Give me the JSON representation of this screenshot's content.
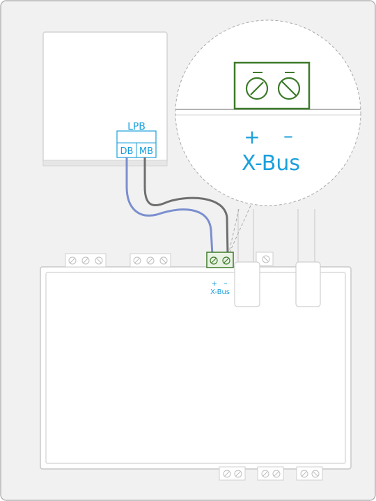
{
  "lpb": {
    "title": "LPB",
    "db": "DB",
    "mb": "MB"
  },
  "xbus_zoom": {
    "plus": "+",
    "minus": "–",
    "label": "X-Bus"
  },
  "xbus_small": {
    "plus": "+",
    "minus": "–",
    "label": "X-Bus"
  },
  "colors": {
    "accent": "#1aa0dc",
    "terminal_green": "#3d7a2a",
    "terminal_fill": "#e9f3e4",
    "wire_db": "#7b8fcf",
    "wire_mb": "#6e6e6e",
    "outline": "#c8c8c8",
    "panel_bg": "#f1f1f1"
  }
}
